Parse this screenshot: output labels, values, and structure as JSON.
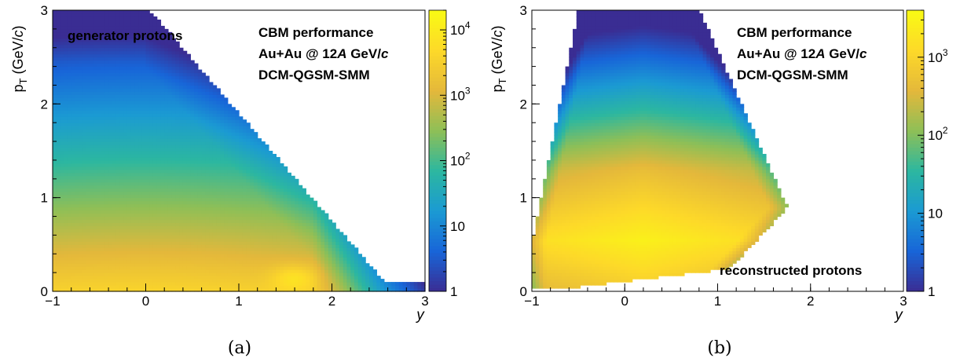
{
  "chart_data": [
    {
      "type": "heatmap",
      "panel": "a",
      "caption": "(a)",
      "annotation_lines": [
        "CBM performance",
        "Au+Au @ 12A GeV/c",
        "DCM-QGSM-SMM"
      ],
      "label": "generator protons",
      "xlabel": "y",
      "ylabel": "p_T (GeV/c)",
      "xlim": [
        -1,
        3
      ],
      "ylim": [
        0,
        3
      ],
      "x_ticks": [
        -1,
        0,
        1,
        2,
        3
      ],
      "y_ticks": [
        0,
        1,
        2,
        3
      ],
      "colorbar": {
        "scale": "log",
        "range": [
          1,
          20000
        ],
        "tick_labels": [
          "1",
          "10",
          "10^2",
          "10^3",
          "10^4"
        ],
        "tick_values": [
          1,
          10,
          100,
          1000,
          10000
        ]
      },
      "colormap": [
        "#3a2d93",
        "#1865d8",
        "#1b9ad3",
        "#2cb7a0",
        "#8ebf57",
        "#e4b83b",
        "#fdd929",
        "#f9fa14"
      ],
      "distribution": {
        "peak_y": 1.6,
        "peak_pt": 0.15,
        "central_pt": 0.45,
        "edge_pt_at_y": {
          "-1": 3.0,
          "0": 3.0,
          "1": 2.2,
          "2": 1.0,
          "2.5": 0.2
        }
      }
    },
    {
      "type": "heatmap",
      "panel": "b",
      "caption": "(b)",
      "annotation_lines": [
        "CBM performance",
        "Au+Au @ 12A GeV/c",
        "DCM-QGSM-SMM"
      ],
      "label": "reconstructed protons",
      "xlabel": "y",
      "ylabel": "p_T (GeV/c)",
      "xlim": [
        -1,
        3
      ],
      "ylim": [
        0,
        3
      ],
      "x_ticks": [
        -1,
        0,
        1,
        2,
        3
      ],
      "y_ticks": [
        0,
        1,
        2,
        3
      ],
      "colorbar": {
        "scale": "log",
        "range": [
          1,
          4000
        ],
        "tick_labels": [
          "1",
          "10",
          "10^2",
          "10^3"
        ],
        "tick_values": [
          1,
          10,
          100,
          1000
        ]
      },
      "colormap": [
        "#3a2d93",
        "#1865d8",
        "#1b9ad3",
        "#2cb7a0",
        "#8ebf57",
        "#e4b83b",
        "#fdd929",
        "#f9fa14"
      ],
      "distribution": {
        "peak_y": 0.1,
        "peak_pt": 0.55,
        "acceptance_corners": {
          "y_at_pt_3_min": -0.5,
          "y_at_pt_3_max": 0.8,
          "y_at_pt_0_5_min": -1.0,
          "y_at_pt_0_9_max": 1.75
        }
      }
    }
  ]
}
